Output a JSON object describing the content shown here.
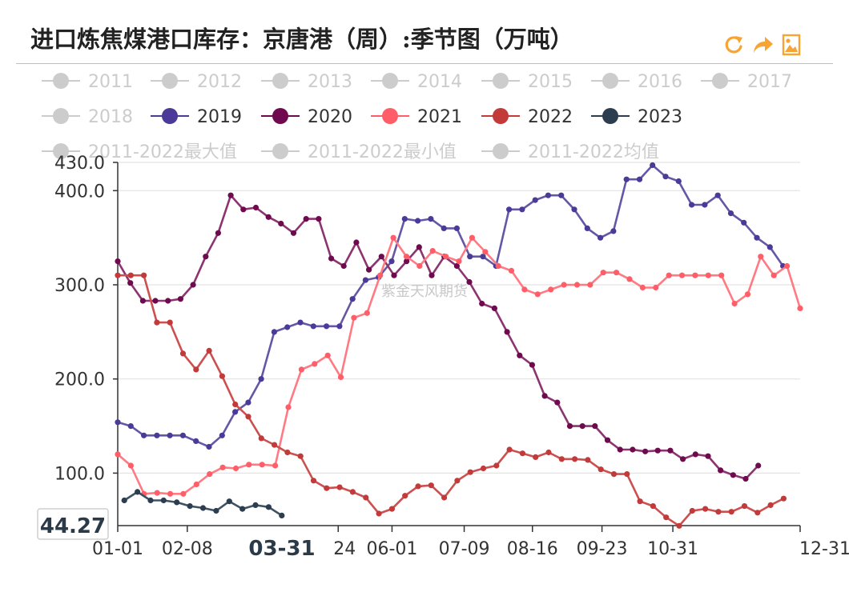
{
  "header": {
    "title": "进口炼焦煤港口库存：京唐港（周）:季节图（万吨）"
  },
  "toolbox": {
    "icons": [
      "refresh-icon",
      "share-icon",
      "save-image-icon"
    ],
    "color": "#f7a432"
  },
  "watermark": "紫金天风期货",
  "pointer": {
    "y_value": "44.27",
    "x_value": "03-31"
  },
  "chart_data": {
    "type": "line",
    "title": "进口炼焦煤港口库存：京唐港（周）:季节图（万吨）",
    "ylim": [
      44.27,
      430
    ],
    "y_ticks": [
      {
        "value": 430,
        "label": "430.0"
      },
      {
        "value": 400,
        "label": "400.0"
      },
      {
        "value": 300,
        "label": "300.0"
      },
      {
        "value": 200,
        "label": "200.0"
      },
      {
        "value": 100,
        "label": "100.0"
      }
    ],
    "x_ticks": [
      {
        "week": 0,
        "label": "01-01"
      },
      {
        "week": 5.3,
        "label": "02-08"
      },
      {
        "week": 20.9,
        "label": "06-01"
      },
      {
        "week": 26.4,
        "label": "07-09"
      },
      {
        "week": 31.6,
        "label": "08-16"
      },
      {
        "week": 36.9,
        "label": "09-23"
      },
      {
        "week": 42.3,
        "label": "10-31"
      },
      {
        "week": 52,
        "label": "12-31"
      }
    ],
    "x_tick_partial": {
      "week": 16.8,
      "label": "24"
    },
    "legend_rows": [
      [
        "2011",
        "2012",
        "2013",
        "2014",
        "2015",
        "2016",
        "2017"
      ],
      [
        "2018",
        "2019",
        "2020",
        "2021",
        "2022",
        "2023"
      ],
      [
        "2011-2022最大值",
        "2011-2022最小值",
        "2011-2022均值"
      ]
    ],
    "series": [
      {
        "name": "2011",
        "active": false,
        "color": "#cccccc",
        "values": []
      },
      {
        "name": "2012",
        "active": false,
        "color": "#cccccc",
        "values": []
      },
      {
        "name": "2013",
        "active": false,
        "color": "#cccccc",
        "values": []
      },
      {
        "name": "2014",
        "active": false,
        "color": "#cccccc",
        "values": []
      },
      {
        "name": "2015",
        "active": false,
        "color": "#cccccc",
        "values": []
      },
      {
        "name": "2016",
        "active": false,
        "color": "#cccccc",
        "values": []
      },
      {
        "name": "2017",
        "active": false,
        "color": "#cccccc",
        "values": []
      },
      {
        "name": "2018",
        "active": false,
        "color": "#cccccc",
        "values": []
      },
      {
        "name": "2019",
        "active": true,
        "color": "#4b3a97",
        "line_color": "#6656a6",
        "x_start": 0,
        "x_step": 0.994,
        "values": [
          154,
          150,
          140,
          140,
          140,
          140,
          134,
          128,
          140,
          165,
          175,
          200,
          250,
          255,
          260,
          256,
          256,
          256,
          285,
          305,
          308,
          325,
          370,
          368,
          370,
          360,
          360,
          330,
          330,
          320,
          380,
          380,
          390,
          395,
          395,
          380,
          360,
          350,
          357,
          412,
          412,
          427,
          415,
          410,
          385,
          385,
          395,
          376,
          366,
          350,
          340,
          320
        ]
      },
      {
        "name": "2020",
        "active": true,
        "color": "#6e0a4d",
        "line_color": "#8c3370",
        "x_start": 0,
        "x_step": 0.957,
        "values": [
          325,
          302,
          283,
          283,
          283,
          285,
          300,
          330,
          355,
          395,
          380,
          382,
          372,
          365,
          355,
          370,
          370,
          328,
          320,
          345,
          316,
          330,
          310,
          325,
          340,
          310,
          330,
          320,
          303,
          280,
          275,
          250,
          225,
          215,
          182,
          175,
          150,
          150,
          150,
          135,
          125,
          125,
          123,
          124,
          124,
          115,
          120,
          118,
          103,
          98,
          94,
          108
        ]
      },
      {
        "name": "2021",
        "active": true,
        "color": "#ff5e69",
        "line_color": "#ff7a82",
        "x_start": 0,
        "x_step": 1.0,
        "values": [
          120,
          108,
          78,
          79,
          78,
          78,
          88,
          99,
          106,
          105,
          109,
          109,
          108,
          170,
          210,
          216,
          225,
          202,
          265,
          270,
          310,
          350,
          330,
          320,
          336,
          330,
          325,
          350,
          335,
          320,
          315,
          295,
          290,
          295,
          300,
          300,
          300,
          313,
          313,
          306,
          297,
          297,
          310,
          310,
          310,
          310,
          310,
          280,
          290,
          330,
          310,
          320,
          275
        ]
      },
      {
        "name": "2022",
        "active": true,
        "color": "#c23a3a",
        "line_color": "#cc5050",
        "x_start": 0,
        "x_step": 0.995,
        "values": [
          310,
          310,
          310,
          260,
          260,
          227,
          210,
          230,
          203,
          173,
          160,
          137,
          130,
          122,
          118,
          92,
          84,
          85,
          80,
          74,
          57,
          62,
          76,
          86,
          87,
          74,
          92,
          101,
          105,
          108,
          125,
          121,
          117,
          122,
          115,
          115,
          114,
          104,
          99,
          99,
          70,
          65,
          53,
          44,
          60,
          62,
          59,
          59,
          65,
          58,
          66,
          73
        ]
      },
      {
        "name": "2023",
        "active": true,
        "color": "#2b3d4f",
        "line_color": "#3f5263",
        "x_start": 0.5,
        "x_step": 1.0,
        "values": [
          71,
          80,
          71,
          71,
          69,
          65,
          63,
          60,
          70,
          62,
          66,
          64,
          55
        ]
      },
      {
        "name": "2011-2022最大值",
        "active": false,
        "color": "#cccccc",
        "values": []
      },
      {
        "name": "2011-2022最小值",
        "active": false,
        "color": "#cccccc",
        "values": []
      },
      {
        "name": "2011-2022均值",
        "active": false,
        "color": "#cccccc",
        "values": []
      }
    ]
  }
}
